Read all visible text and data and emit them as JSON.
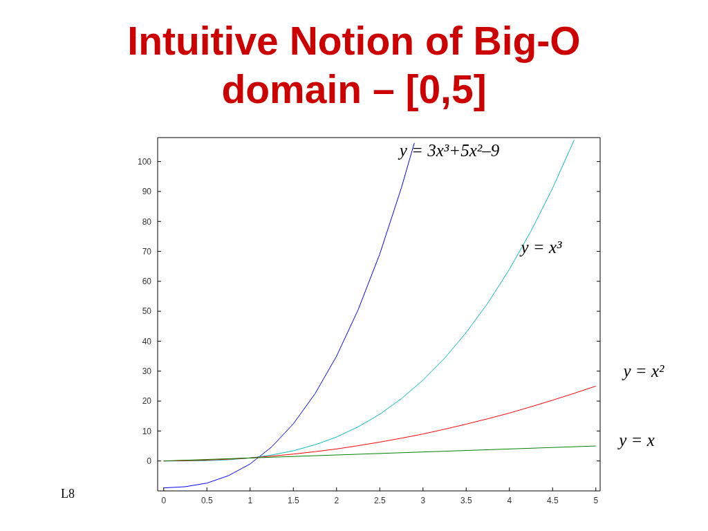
{
  "chart_data": {
    "type": "line",
    "title": "Intuitive Notion of Big-O",
    "subtitle": "domain – [0,5]",
    "series": [
      {
        "name": "y = 3x³+5x²–9",
        "color": "#0000ff",
        "x": [
          0,
          0.25,
          0.5,
          0.75,
          1,
          1.25,
          1.5,
          1.75,
          2,
          2.25,
          2.5,
          2.75,
          2.9
        ],
        "values": [
          -9,
          -8.6,
          -7.4,
          -4.9,
          -1,
          4.7,
          12.4,
          22.4,
          35,
          50.5,
          69.1,
          91.2,
          106.2
        ]
      },
      {
        "name": "y = x³",
        "color": "#00bfbf",
        "x": [
          0,
          0.25,
          0.5,
          0.75,
          1,
          1.25,
          1.5,
          1.75,
          2,
          2.25,
          2.5,
          2.75,
          3,
          3.25,
          3.5,
          3.75,
          4,
          4.25,
          4.5,
          4.75
        ],
        "values": [
          0,
          0,
          0.1,
          0.4,
          1,
          2,
          3.4,
          5.4,
          8,
          11.4,
          15.6,
          20.8,
          27,
          34.3,
          42.9,
          52.7,
          64,
          76.8,
          91.1,
          107.2
        ]
      },
      {
        "name": "y = x²",
        "color": "#ff0000",
        "x": [
          0,
          0.25,
          0.5,
          0.75,
          1,
          1.25,
          1.5,
          1.75,
          2,
          2.25,
          2.5,
          2.75,
          3,
          3.25,
          3.5,
          3.75,
          4,
          4.25,
          4.5,
          4.75,
          5
        ],
        "values": [
          0,
          0.1,
          0.3,
          0.6,
          1,
          1.6,
          2.3,
          3.1,
          4,
          5.1,
          6.3,
          7.6,
          9,
          10.6,
          12.3,
          14.1,
          16,
          18.1,
          20.3,
          22.6,
          25
        ]
      },
      {
        "name": "y = x",
        "color": "#008000",
        "x": [
          0,
          5
        ],
        "values": [
          0,
          5
        ]
      }
    ],
    "xlim": [
      -0.07,
      5.05
    ],
    "ylim": [
      -10,
      108
    ],
    "xticks": [
      0,
      0.5,
      1,
      1.5,
      2,
      2.5,
      3,
      3.5,
      4,
      4.5,
      5
    ],
    "yticks": [
      0,
      10,
      20,
      30,
      40,
      50,
      60,
      70,
      80,
      90,
      100
    ],
    "annotations": [
      "L8"
    ]
  }
}
